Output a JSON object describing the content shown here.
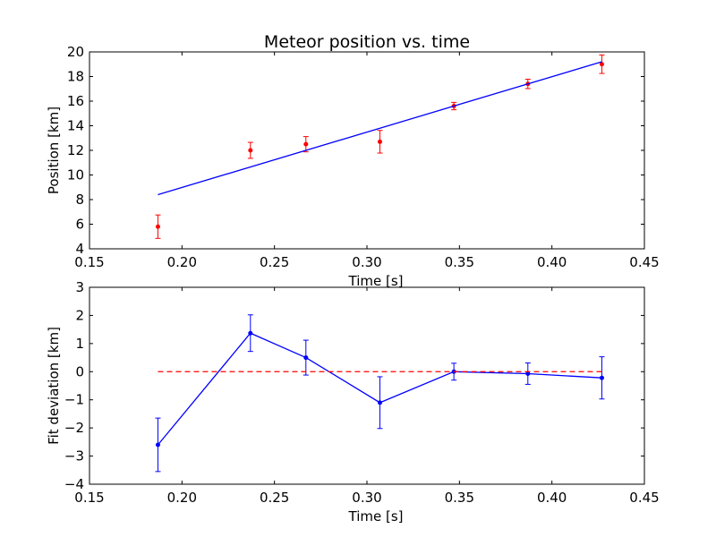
{
  "figure": {
    "title": "Meteor position vs. time"
  },
  "chart_data": [
    {
      "type": "line",
      "title": "Meteor position vs. time",
      "xlabel": "Time [s]",
      "ylabel": "Position [km]",
      "xlim": [
        0.15,
        0.45
      ],
      "ylim": [
        4,
        20
      ],
      "xticks": [
        "0.15",
        "0.20",
        "0.25",
        "0.30",
        "0.35",
        "0.40",
        "0.45"
      ],
      "yticks": [
        "4",
        "6",
        "8",
        "10",
        "12",
        "14",
        "16",
        "18",
        "20"
      ],
      "grid": false,
      "series": [
        {
          "kind": "errorbar-points",
          "color": "#ff0000",
          "x": [
            0.187,
            0.237,
            0.267,
            0.307,
            0.347,
            0.387,
            0.427
          ],
          "y": [
            5.8,
            12.0,
            12.5,
            12.7,
            15.6,
            17.4,
            19.0
          ],
          "yerr": [
            0.95,
            0.65,
            0.62,
            0.92,
            0.3,
            0.38,
            0.75
          ]
        },
        {
          "kind": "line",
          "color": "#0000ff",
          "x": [
            0.187,
            0.427
          ],
          "y": [
            8.4,
            19.2
          ]
        }
      ]
    },
    {
      "type": "line",
      "title": "",
      "xlabel": "Time [s]",
      "ylabel": "Fit deviation [km]",
      "xlim": [
        0.15,
        0.45
      ],
      "ylim": [
        -4,
        3
      ],
      "xticks": [
        "0.15",
        "0.20",
        "0.25",
        "0.30",
        "0.35",
        "0.40",
        "0.45"
      ],
      "yticks": [
        "−4",
        "−3",
        "−2",
        "−1",
        "0",
        "1",
        "2",
        "3"
      ],
      "grid": false,
      "series": [
        {
          "kind": "errorbar-line",
          "color": "#0000ff",
          "x": [
            0.187,
            0.237,
            0.267,
            0.307,
            0.347,
            0.387,
            0.427
          ],
          "y": [
            -2.6,
            1.37,
            0.5,
            -1.1,
            0.0,
            -0.07,
            -0.22
          ],
          "yerr": [
            0.95,
            0.65,
            0.62,
            0.92,
            0.3,
            0.38,
            0.75
          ]
        },
        {
          "kind": "dashed-line",
          "color": "#ff0000",
          "x": [
            0.187,
            0.427
          ],
          "y": [
            0,
            0
          ]
        }
      ]
    }
  ]
}
